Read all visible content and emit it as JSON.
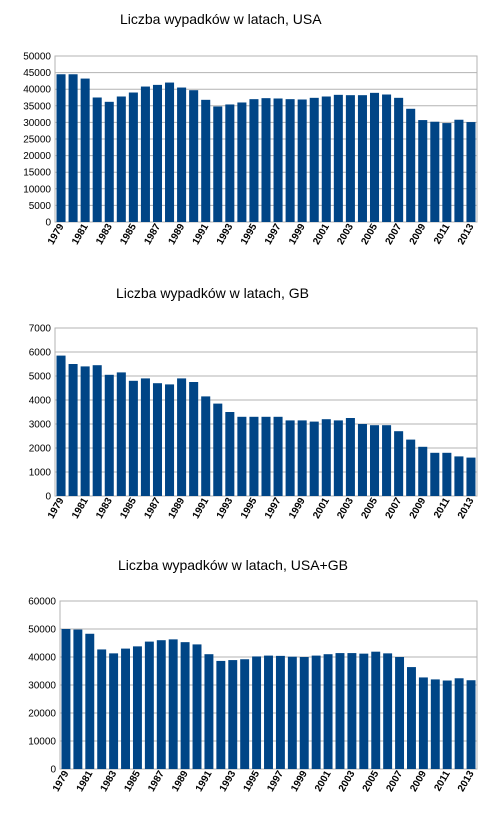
{
  "chart_data": [
    {
      "type": "bar",
      "title": "Liczba wypadków w latach, USA",
      "categories": [
        "1979",
        "1980",
        "1981",
        "1982",
        "1983",
        "1984",
        "1985",
        "1986",
        "1987",
        "1988",
        "1989",
        "1990",
        "1991",
        "1992",
        "1993",
        "1994",
        "1995",
        "1996",
        "1997",
        "1998",
        "1999",
        "2000",
        "2001",
        "2002",
        "2003",
        "2004",
        "2005",
        "2006",
        "2007",
        "2008",
        "2009",
        "2010",
        "2011",
        "2012",
        "2013"
      ],
      "x_tick_labels": [
        "1979",
        "1981",
        "1983",
        "1985",
        "1987",
        "1989",
        "1991",
        "1993",
        "1995",
        "1997",
        "1999",
        "2001",
        "2003",
        "2005",
        "2007",
        "2009",
        "2011",
        "2013"
      ],
      "values": [
        44500,
        44500,
        43200,
        37500,
        36200,
        37800,
        39000,
        40800,
        41300,
        42000,
        40500,
        39700,
        36800,
        34800,
        35400,
        36000,
        37000,
        37300,
        37200,
        37000,
        36900,
        37400,
        37800,
        38300,
        38200,
        38200,
        38900,
        38400,
        37400,
        34100,
        30700,
        30200,
        29800,
        30800,
        30100
      ],
      "ylim": [
        0,
        50000
      ],
      "yticks": [
        0,
        5000,
        10000,
        15000,
        20000,
        25000,
        30000,
        35000,
        40000,
        45000,
        50000
      ],
      "grid": true,
      "color": "#004586"
    },
    {
      "type": "bar",
      "title": "Liczba wypadków w latach, GB",
      "categories": [
        "1979",
        "1980",
        "1981",
        "1982",
        "1983",
        "1984",
        "1985",
        "1986",
        "1987",
        "1988",
        "1989",
        "1990",
        "1991",
        "1992",
        "1993",
        "1994",
        "1995",
        "1996",
        "1997",
        "1998",
        "1999",
        "2000",
        "2001",
        "2002",
        "2003",
        "2004",
        "2005",
        "2006",
        "2007",
        "2008",
        "2009",
        "2010",
        "2011",
        "2012",
        "2013"
      ],
      "x_tick_labels": [
        "1979",
        "1981",
        "1983",
        "1985",
        "1987",
        "1989",
        "1991",
        "1993",
        "1995",
        "1997",
        "1999",
        "2001",
        "2003",
        "2005",
        "2007",
        "2009",
        "2011",
        "2013"
      ],
      "values": [
        5850,
        5500,
        5400,
        5450,
        5050,
        5150,
        4800,
        4900,
        4700,
        4650,
        4900,
        4750,
        4150,
        3850,
        3500,
        3300,
        3300,
        3300,
        3300,
        3150,
        3150,
        3100,
        3200,
        3150,
        3250,
        3000,
        2950,
        2950,
        2700,
        2350,
        2050,
        1800,
        1800,
        1650,
        1600
      ],
      "ylim": [
        0,
        7000
      ],
      "yticks": [
        0,
        1000,
        2000,
        3000,
        4000,
        5000,
        6000,
        7000
      ],
      "grid": true,
      "color": "#004586"
    },
    {
      "type": "bar",
      "title": "Liczba wypadków w latach, USA+GB",
      "categories": [
        "1979",
        "1980",
        "1981",
        "1982",
        "1983",
        "1984",
        "1985",
        "1986",
        "1987",
        "1988",
        "1989",
        "1990",
        "1991",
        "1992",
        "1993",
        "1994",
        "1995",
        "1996",
        "1997",
        "1998",
        "1999",
        "2000",
        "2001",
        "2002",
        "2003",
        "2004",
        "2005",
        "2006",
        "2007",
        "2008",
        "2009",
        "2010",
        "2011",
        "2012",
        "2013"
      ],
      "x_tick_labels": [
        "1979",
        "1981",
        "1983",
        "1985",
        "1987",
        "1989",
        "1991",
        "1993",
        "1995",
        "1997",
        "1999",
        "2001",
        "2003",
        "2005",
        "2007",
        "2009",
        "2011",
        "2013"
      ],
      "values": [
        50000,
        49800,
        48300,
        42700,
        41300,
        43000,
        43800,
        45500,
        46000,
        46300,
        45300,
        44500,
        41000,
        38600,
        38900,
        39200,
        40200,
        40500,
        40400,
        40100,
        40000,
        40500,
        41000,
        41400,
        41400,
        41200,
        41900,
        41300,
        40000,
        36400,
        32700,
        32000,
        31600,
        32400,
        31700
      ],
      "ylim": [
        0,
        60000
      ],
      "yticks": [
        0,
        10000,
        20000,
        30000,
        40000,
        50000,
        60000
      ],
      "grid": true,
      "color": "#004586"
    }
  ]
}
